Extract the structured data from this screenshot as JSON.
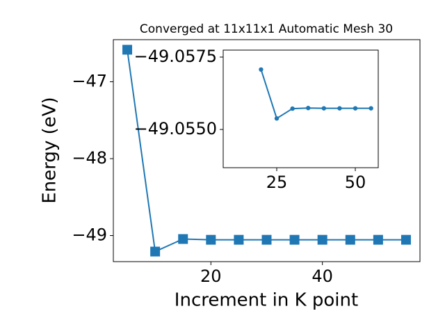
{
  "chart_data": [
    {
      "type": "line",
      "title": "Converged at 11x11x1 Automatic Mesh 30",
      "xlabel": "Increment in K point",
      "ylabel": "Energy (eV)",
      "x": [
        5,
        10,
        15,
        20,
        25,
        30,
        35,
        40,
        45,
        50,
        55
      ],
      "series": [
        {
          "color": "#1f77b4",
          "marker": "square",
          "values": [
            -46.584,
            -49.208,
            -49.045,
            -49.055,
            -49.055,
            -49.055,
            -49.055,
            -49.055,
            -49.055,
            -49.055,
            -49.055
          ]
        }
      ],
      "xlim": [
        2.5,
        57.5
      ],
      "ylim": [
        -49.339,
        -46.453
      ],
      "xticks": [
        20,
        40
      ],
      "yticks": [
        {
          "value": -49,
          "label": "−49"
        },
        {
          "value": -48,
          "label": "−48"
        },
        {
          "value": -47,
          "label": "−47"
        }
      ]
    },
    {
      "type": "line",
      "x": [
        20,
        25,
        30,
        35,
        40,
        45,
        50,
        55
      ],
      "series": [
        {
          "color": "#1f77b4",
          "marker": "circle",
          "values": [
            -49.05707,
            -49.05538,
            -49.05572,
            -49.05574,
            -49.05573,
            -49.05573,
            -49.05573,
            -49.05573
          ]
        }
      ],
      "xlim": [
        7.96,
        57.3
      ],
      "ylim": [
        -49.05368,
        -49.05774
      ],
      "xticks": [
        25,
        50
      ],
      "yticks": [
        {
          "value": -49.0575,
          "label": "−49.0575"
        },
        {
          "value": -49.055,
          "label": "−49.0550"
        }
      ]
    }
  ]
}
